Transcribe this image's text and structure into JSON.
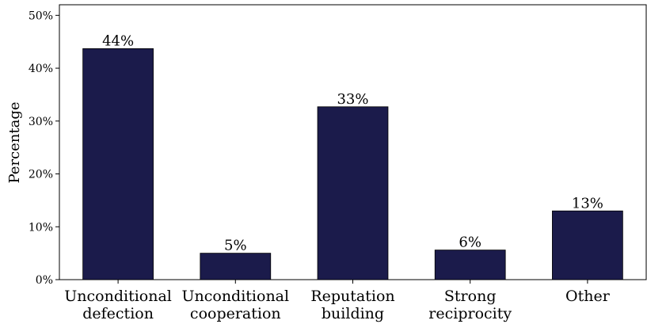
{
  "chart_data": {
    "type": "bar",
    "categories": [
      [
        "Unconditional",
        "defection"
      ],
      [
        "Unconditional",
        "cooperation"
      ],
      [
        "Reputation",
        "building"
      ],
      [
        "Strong",
        "reciprocity"
      ],
      [
        "Other"
      ]
    ],
    "values": [
      43.7,
      5.0,
      32.7,
      5.6,
      13.0
    ],
    "data_labels": [
      "44%",
      "5%",
      "33%",
      "6%",
      "13%"
    ],
    "ylabel": "Percentage",
    "ylim": [
      0,
      52
    ],
    "yticks": [
      0,
      10,
      20,
      30,
      40,
      50
    ],
    "ytick_labels": [
      "0%",
      "10%",
      "20%",
      "30%",
      "40%",
      "50%"
    ],
    "bar_color": "#1b1b4b",
    "grid": false
  }
}
